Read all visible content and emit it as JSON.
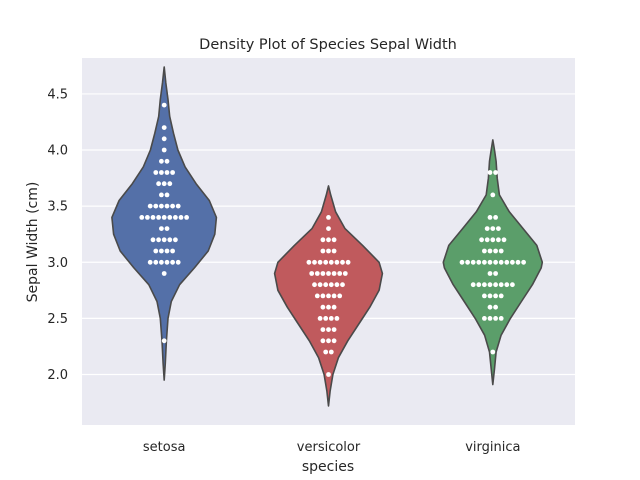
{
  "chart_data": {
    "type": "violin",
    "title": "Density Plot of Species Sepal Width",
    "xlabel": "species",
    "ylabel": "Sepal Width (cm)",
    "categories": [
      "setosa",
      "versicolor",
      "virginica"
    ],
    "ylim": [
      1.55,
      4.82
    ],
    "yticks": [
      2.0,
      2.5,
      3.0,
      3.5,
      4.0,
      4.5
    ],
    "ytick_labels": [
      "2.0",
      "2.5",
      "3.0",
      "3.5",
      "4.0",
      "4.5"
    ],
    "grid": true,
    "background": "#eaeaf2",
    "colors": {
      "setosa": "#5470a8",
      "versicolor": "#c05a5d",
      "virginica": "#5b9e6a"
    },
    "violins": [
      {
        "name": "setosa",
        "profile": [
          [
            1.95,
            0.0
          ],
          [
            2.1,
            0.02
          ],
          [
            2.3,
            0.04
          ],
          [
            2.5,
            0.07
          ],
          [
            2.65,
            0.13
          ],
          [
            2.8,
            0.28
          ],
          [
            2.95,
            0.55
          ],
          [
            3.1,
            0.8
          ],
          [
            3.25,
            0.92
          ],
          [
            3.4,
            0.95
          ],
          [
            3.55,
            0.82
          ],
          [
            3.7,
            0.58
          ],
          [
            3.85,
            0.38
          ],
          [
            4.0,
            0.25
          ],
          [
            4.15,
            0.17
          ],
          [
            4.3,
            0.1
          ],
          [
            4.45,
            0.07
          ],
          [
            4.6,
            0.03
          ],
          [
            4.74,
            0.0
          ]
        ],
        "points": [
          {
            "y": 4.4,
            "n": 1
          },
          {
            "y": 4.2,
            "n": 1
          },
          {
            "y": 4.1,
            "n": 1
          },
          {
            "y": 4.0,
            "n": 1
          },
          {
            "y": 3.9,
            "n": 2
          },
          {
            "y": 3.8,
            "n": 4
          },
          {
            "y": 3.7,
            "n": 3
          },
          {
            "y": 3.6,
            "n": 2
          },
          {
            "y": 3.5,
            "n": 6
          },
          {
            "y": 3.4,
            "n": 9
          },
          {
            "y": 3.3,
            "n": 2
          },
          {
            "y": 3.2,
            "n": 5
          },
          {
            "y": 3.1,
            "n": 4
          },
          {
            "y": 3.0,
            "n": 6
          },
          {
            "y": 2.9,
            "n": 1
          },
          {
            "y": 2.3,
            "n": 1
          }
        ]
      },
      {
        "name": "versicolor",
        "profile": [
          [
            1.72,
            0.0
          ],
          [
            1.85,
            0.03
          ],
          [
            2.0,
            0.08
          ],
          [
            2.15,
            0.18
          ],
          [
            2.3,
            0.35
          ],
          [
            2.45,
            0.55
          ],
          [
            2.6,
            0.75
          ],
          [
            2.75,
            0.92
          ],
          [
            2.9,
            0.98
          ],
          [
            3.0,
            0.92
          ],
          [
            3.15,
            0.62
          ],
          [
            3.3,
            0.3
          ],
          [
            3.45,
            0.13
          ],
          [
            3.6,
            0.04
          ],
          [
            3.68,
            0.0
          ]
        ],
        "points": [
          {
            "y": 3.4,
            "n": 1
          },
          {
            "y": 3.3,
            "n": 1
          },
          {
            "y": 3.2,
            "n": 3
          },
          {
            "y": 3.1,
            "n": 3
          },
          {
            "y": 3.0,
            "n": 8
          },
          {
            "y": 2.9,
            "n": 7
          },
          {
            "y": 2.8,
            "n": 6
          },
          {
            "y": 2.7,
            "n": 5
          },
          {
            "y": 2.6,
            "n": 3
          },
          {
            "y": 2.5,
            "n": 4
          },
          {
            "y": 2.4,
            "n": 3
          },
          {
            "y": 2.3,
            "n": 3
          },
          {
            "y": 2.2,
            "n": 2
          },
          {
            "y": 2.0,
            "n": 1
          }
        ]
      },
      {
        "name": "virginica",
        "profile": [
          [
            1.91,
            0.0
          ],
          [
            2.05,
            0.03
          ],
          [
            2.2,
            0.06
          ],
          [
            2.35,
            0.15
          ],
          [
            2.5,
            0.32
          ],
          [
            2.65,
            0.52
          ],
          [
            2.8,
            0.72
          ],
          [
            2.95,
            0.88
          ],
          [
            3.0,
            0.9
          ],
          [
            3.15,
            0.8
          ],
          [
            3.3,
            0.55
          ],
          [
            3.45,
            0.3
          ],
          [
            3.6,
            0.12
          ],
          [
            3.75,
            0.08
          ],
          [
            3.9,
            0.06
          ],
          [
            4.0,
            0.03
          ],
          [
            4.09,
            0.0
          ]
        ],
        "points": [
          {
            "y": 3.8,
            "n": 2
          },
          {
            "y": 3.6,
            "n": 1
          },
          {
            "y": 3.4,
            "n": 2
          },
          {
            "y": 3.3,
            "n": 3
          },
          {
            "y": 3.2,
            "n": 5
          },
          {
            "y": 3.1,
            "n": 4
          },
          {
            "y": 3.0,
            "n": 12
          },
          {
            "y": 2.9,
            "n": 2
          },
          {
            "y": 2.8,
            "n": 8
          },
          {
            "y": 2.7,
            "n": 4
          },
          {
            "y": 2.6,
            "n": 2
          },
          {
            "y": 2.5,
            "n": 4
          },
          {
            "y": 2.2,
            "n": 1
          }
        ]
      }
    ]
  }
}
